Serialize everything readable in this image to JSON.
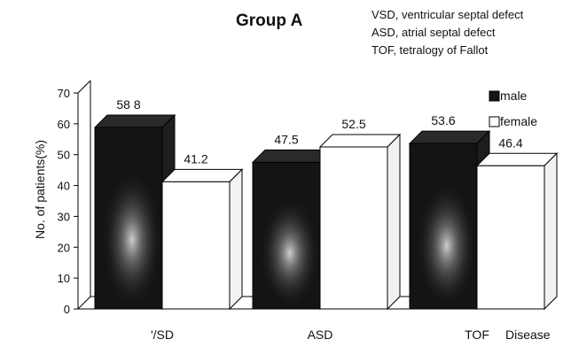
{
  "chart_data": {
    "type": "bar",
    "title": "Group A",
    "annotations": [
      "VSD, ventricular septal defect",
      "ASD, atrial septal defect",
      "TOF, tetralogy of Fallot"
    ],
    "ylabel": "No. of patients(%)",
    "xlabel": "Disease",
    "ylim": [
      0,
      70
    ],
    "yticks": [
      0,
      10,
      20,
      30,
      40,
      50,
      60,
      70
    ],
    "categories": [
      "'/SD",
      "ASD",
      "TOF"
    ],
    "series": [
      {
        "name": "male",
        "values": [
          58.8,
          47.5,
          53.6
        ],
        "value_labels": [
          "58 8",
          "47.5",
          "53.6"
        ],
        "color": "#141414"
      },
      {
        "name": "female",
        "values": [
          41.2,
          52.5,
          46.4
        ],
        "value_labels": [
          "41.2",
          "52.5",
          "46.4"
        ],
        "color": "#ffffff"
      }
    ],
    "legend": "right",
    "grid": false,
    "style": "3d"
  }
}
